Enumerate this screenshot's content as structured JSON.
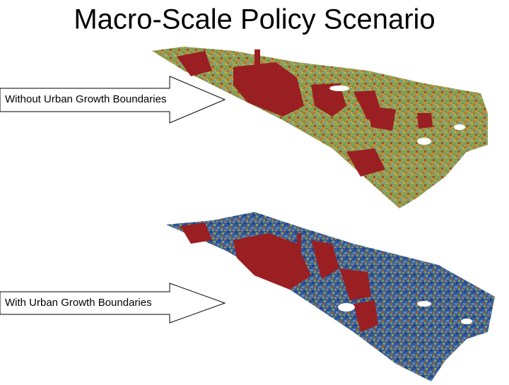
{
  "title": "Macro-Scale Policy Scenario",
  "arrows": [
    {
      "label": "Without Urban Growth Boundaries"
    },
    {
      "label": "With Urban Growth Boundaries"
    }
  ]
}
